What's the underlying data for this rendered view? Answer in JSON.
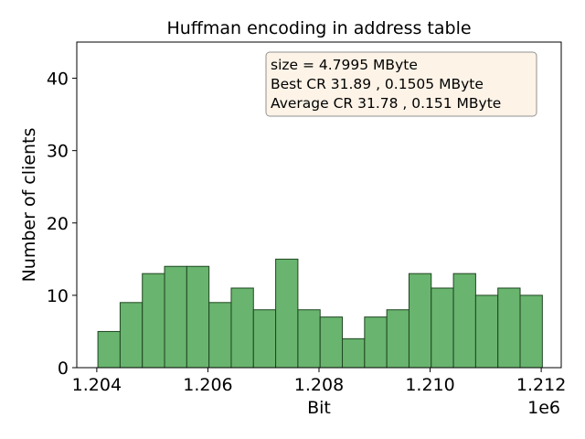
{
  "chart_data": {
    "type": "bar",
    "title": "Huffman encoding in address table",
    "xlabel": "Bit",
    "ylabel": "Number of clients",
    "x_offset_label": "1e6",
    "x_range": [
      1.20364,
      1.21236
    ],
    "ylim": [
      0,
      45
    ],
    "x_ticks": [
      1.204,
      1.206,
      1.208,
      1.21,
      1.212
    ],
    "x_tick_labels": [
      "1.204",
      "1.206",
      "1.208",
      "1.210",
      "1.212"
    ],
    "y_ticks": [
      0,
      10,
      20,
      30,
      40
    ],
    "y_tick_labels": [
      "0",
      "10",
      "20",
      "30",
      "40"
    ],
    "bin_edges": [
      1.20402,
      1.20442,
      1.20482,
      1.20522,
      1.20562,
      1.20602,
      1.20642,
      1.20682,
      1.20722,
      1.20762,
      1.20802,
      1.20842,
      1.20882,
      1.20922,
      1.20962,
      1.21002,
      1.21042,
      1.21082,
      1.21122,
      1.21162,
      1.21202
    ],
    "values": [
      5,
      9,
      13,
      14,
      14,
      9,
      11,
      8,
      15,
      8,
      7,
      4,
      7,
      8,
      13,
      11,
      13,
      10,
      11,
      10
    ],
    "bar_color": "#69b46e",
    "bar_edge_color": "#1e4620",
    "grid": false,
    "annotation": {
      "position": "top-right",
      "lines": [
        "size  = 4.7995 MByte",
        "Best CR   31.89 ,  0.1505 MByte",
        "Average CR   31.78 ,  0.151 MByte"
      ],
      "background": "#fdf2e3",
      "border": "#7f7f7f"
    }
  }
}
